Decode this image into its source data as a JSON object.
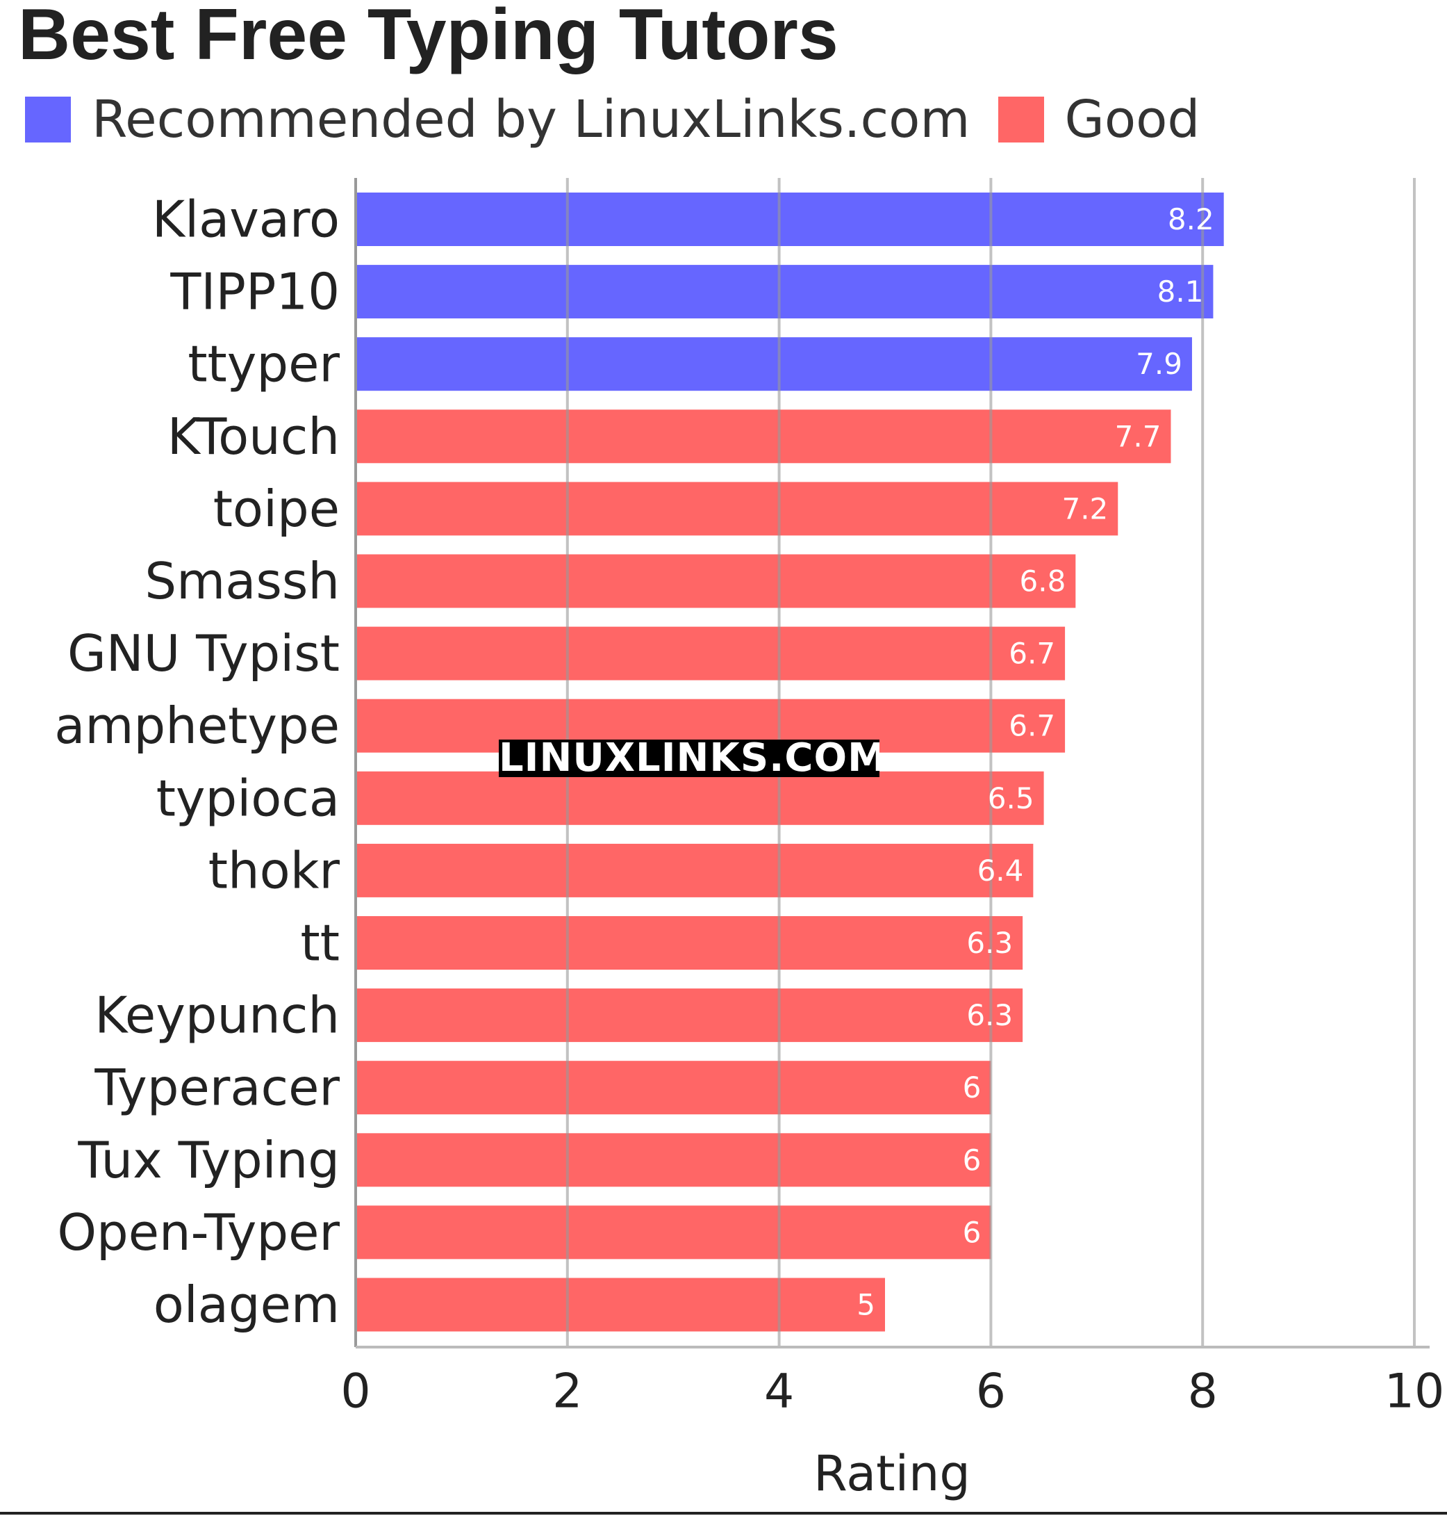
{
  "chart_data": {
    "type": "bar",
    "orientation": "horizontal",
    "title": "Best Free Typing Tutors",
    "xlabel": "Rating",
    "ylabel": "",
    "xlim": [
      0,
      10
    ],
    "x_ticks": [
      "0",
      "2",
      "4",
      "6",
      "8",
      "10"
    ],
    "grid": true,
    "legend_position": "top-left",
    "legend": [
      {
        "name": "Recommended by LinuxLinks.com",
        "color": "#6666ff"
      },
      {
        "name": "Good",
        "color": "#ff6666"
      }
    ],
    "categories": [
      "Klavaro",
      "TIPP10",
      "ttyper",
      "KTouch",
      "toipe",
      "Smassh",
      "GNU Typist",
      "amphetype",
      "typioca",
      "thokr",
      "tt",
      "Keypunch",
      "Typeracer",
      "Tux Typing",
      "Open-Typer",
      "olagem"
    ],
    "values": [
      8.2,
      8.1,
      7.9,
      7.7,
      7.2,
      6.8,
      6.7,
      6.7,
      6.5,
      6.4,
      6.3,
      6.3,
      6,
      6,
      6,
      5
    ],
    "value_labels": [
      "8.2",
      "8.1",
      "7.9",
      "7.7",
      "7.2",
      "6.8",
      "6.7",
      "6.7",
      "6.5",
      "6.4",
      "6.3",
      "6.3",
      "6",
      "6",
      "6",
      "5"
    ],
    "groups": [
      "Recommended by LinuxLinks.com",
      "Recommended by LinuxLinks.com",
      "Recommended by LinuxLinks.com",
      "Good",
      "Good",
      "Good",
      "Good",
      "Good",
      "Good",
      "Good",
      "Good",
      "Good",
      "Good",
      "Good",
      "Good",
      "Good"
    ],
    "watermark": "LINUXLINKS.COM"
  },
  "colors": {
    "recommended": "#6666ff",
    "good": "#ff6666",
    "grid": "#bbbbbb",
    "text": "#222222",
    "value_label": "#ffffff"
  }
}
